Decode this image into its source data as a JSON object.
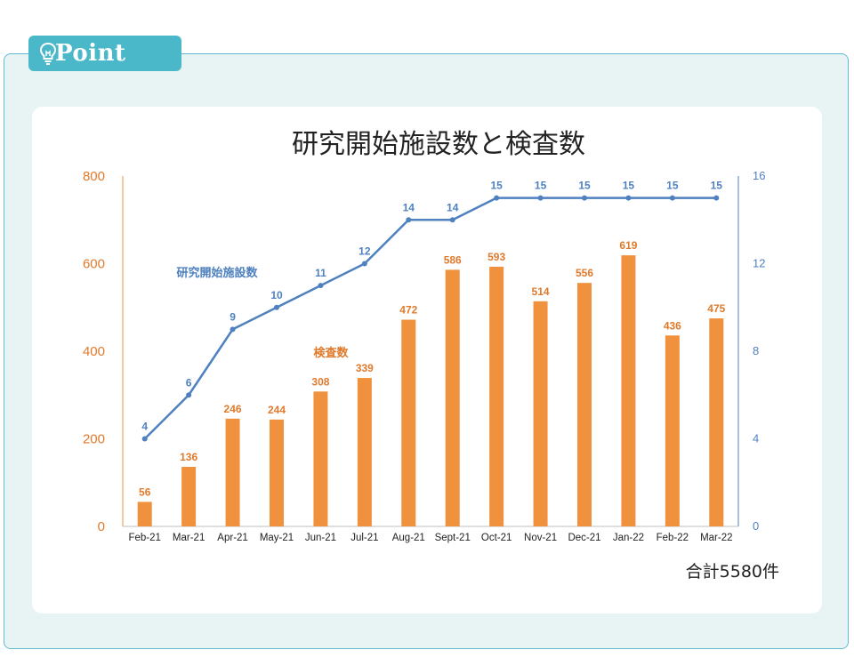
{
  "header": {
    "tab_label": "Point",
    "tab_icon": "lightbulb-icon"
  },
  "chart_data": {
    "type": "bar",
    "title": "研究開始施設数と検査数",
    "categories": [
      "Feb-21",
      "Mar-21",
      "Apr-21",
      "May-21",
      "Jun-21",
      "Jul-21",
      "Aug-21",
      "Sept-21",
      "Oct-21",
      "Nov-21",
      "Dec-21",
      "Jan-22",
      "Feb-22",
      "Mar-22"
    ],
    "series": [
      {
        "name": "検査数",
        "type": "bar",
        "axis": "left",
        "color": "#f0913d",
        "values": [
          56,
          136,
          246,
          244,
          308,
          339,
          472,
          586,
          593,
          514,
          556,
          619,
          436,
          475
        ]
      },
      {
        "name": "研究開始施設数",
        "type": "line",
        "axis": "right",
        "color": "#4f81c1",
        "values": [
          4,
          6,
          9,
          10,
          11,
          12,
          14,
          14,
          15,
          15,
          15,
          15,
          15,
          15
        ]
      }
    ],
    "y_left": {
      "ticks": [
        "0",
        "200",
        "400",
        "600",
        "800"
      ],
      "lim": [
        0,
        800
      ],
      "color": "#e07a2c"
    },
    "y_right": {
      "ticks": [
        "0",
        "4",
        "8",
        "12",
        "16"
      ],
      "lim": [
        0,
        16
      ],
      "color": "#4f81c1"
    },
    "grid": false,
    "annotation": "合計5580件"
  }
}
